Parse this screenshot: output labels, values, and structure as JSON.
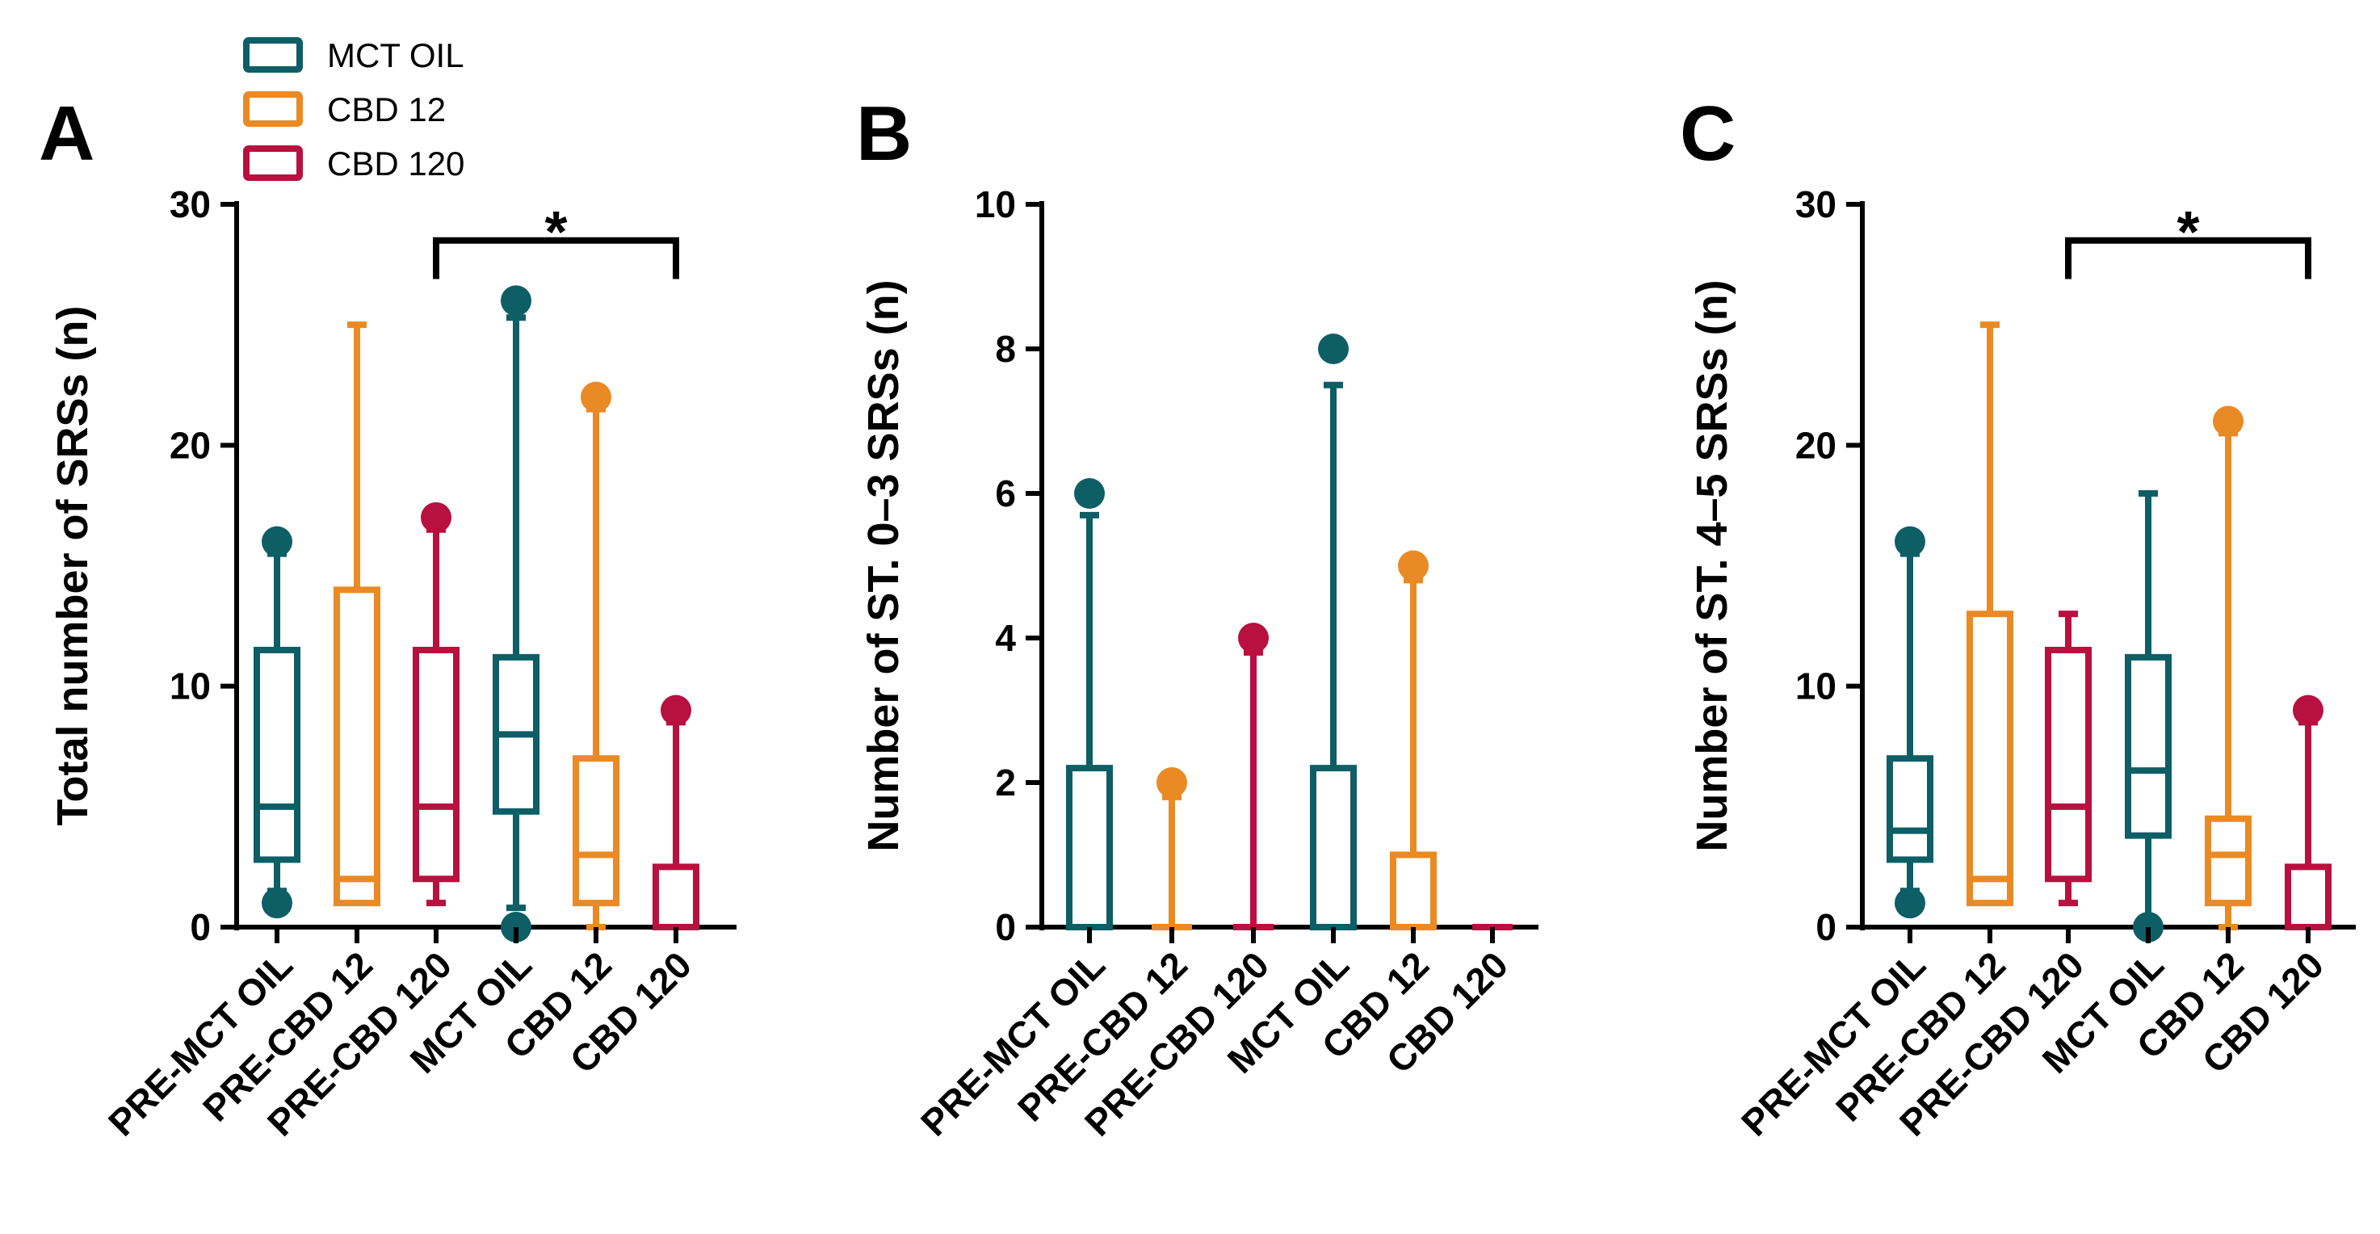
{
  "colors": {
    "MCT OIL": "#0e5e66",
    "CBD 12": "#ea8a24",
    "CBD 120": "#b8103f",
    "axis": "#000000"
  },
  "legend": [
    {
      "label": "MCT OIL",
      "group": "MCT OIL"
    },
    {
      "label": "CBD 12",
      "group": "CBD 12"
    },
    {
      "label": "CBD 120",
      "group": "CBD 120"
    }
  ],
  "chart_data": [
    {
      "type": "boxplot",
      "panel": "A",
      "ylabel": "Total number of SRSs (n)",
      "ylim": [
        0,
        30
      ],
      "yticks": [
        0,
        10,
        20,
        30
      ],
      "categories": [
        "PRE-MCT OIL",
        "PRE-CBD 12",
        "PRE-CBD 120",
        "MCT OIL",
        "CBD 12",
        "CBD 120"
      ],
      "groups": [
        "MCT OIL",
        "CBD 12",
        "CBD 120",
        "MCT OIL",
        "CBD 12",
        "CBD 120"
      ],
      "boxes": [
        {
          "q1": 2.8,
          "median": 5,
          "q3": 11.5,
          "whisker_low": 1.5,
          "whisker_high": 15.5,
          "outliers": [
            16,
            1
          ]
        },
        {
          "q1": 1,
          "median": 2,
          "q3": 14,
          "whisker_low": 1,
          "whisker_high": 25,
          "outliers": []
        },
        {
          "q1": 2,
          "median": 5,
          "q3": 11.5,
          "whisker_low": 1,
          "whisker_high": 16.5,
          "outliers": [
            17
          ]
        },
        {
          "q1": 4.8,
          "median": 8,
          "q3": 11.2,
          "whisker_low": 0.8,
          "whisker_high": 25.3,
          "outliers": [
            26,
            0
          ]
        },
        {
          "q1": 1,
          "median": 3,
          "q3": 7,
          "whisker_low": 0,
          "whisker_high": 21.5,
          "outliers": [
            22
          ]
        },
        {
          "q1": 0,
          "median": 0,
          "q3": 2.5,
          "whisker_low": 0,
          "whisker_high": 8.5,
          "outliers": [
            9
          ]
        }
      ],
      "significance": {
        "from": 2,
        "to": 5,
        "label": "*",
        "y": 28.5,
        "drop_to": 26.9
      }
    },
    {
      "type": "boxplot",
      "panel": "B",
      "ylabel": "Number of ST. 0–3 SRSs (n)",
      "ylim": [
        0,
        10
      ],
      "yticks": [
        0,
        2,
        4,
        6,
        8,
        10
      ],
      "categories": [
        "PRE-MCT OIL",
        "PRE-CBD 12",
        "PRE-CBD 120",
        "MCT OIL",
        "CBD 12",
        "CBD 120"
      ],
      "groups": [
        "MCT OIL",
        "CBD 12",
        "CBD 120",
        "MCT OIL",
        "CBD 12",
        "CBD 120"
      ],
      "boxes": [
        {
          "q1": 0,
          "median": 0,
          "q3": 2.2,
          "whisker_low": 0,
          "whisker_high": 5.7,
          "outliers": [
            6
          ]
        },
        {
          "q1": 0,
          "median": 0,
          "q3": 0,
          "whisker_low": 0,
          "whisker_high": 1.8,
          "outliers": [
            2
          ]
        },
        {
          "q1": 0,
          "median": 0,
          "q3": 0,
          "whisker_low": 0,
          "whisker_high": 3.8,
          "outliers": [
            4
          ]
        },
        {
          "q1": 0,
          "median": 0,
          "q3": 2.2,
          "whisker_low": 0,
          "whisker_high": 7.5,
          "outliers": [
            8
          ]
        },
        {
          "q1": 0,
          "median": 0,
          "q3": 1,
          "whisker_low": 0,
          "whisker_high": 4.8,
          "outliers": [
            5
          ]
        },
        {
          "q1": 0,
          "median": 0,
          "q3": 0,
          "whisker_low": 0,
          "whisker_high": 0,
          "outliers": []
        }
      ],
      "significance": null
    },
    {
      "type": "boxplot",
      "panel": "C",
      "ylabel": "Number of ST. 4–5 SRSs (n)",
      "ylim": [
        0,
        30
      ],
      "yticks": [
        0,
        10,
        20,
        30
      ],
      "categories": [
        "PRE-MCT OIL",
        "PRE-CBD 12",
        "PRE-CBD 120",
        "MCT OIL",
        "CBD 12",
        "CBD 120"
      ],
      "groups": [
        "MCT OIL",
        "CBD 12",
        "CBD 120",
        "MCT OIL",
        "CBD 12",
        "CBD 120"
      ],
      "boxes": [
        {
          "q1": 2.8,
          "median": 4,
          "q3": 7,
          "whisker_low": 1.5,
          "whisker_high": 15.5,
          "outliers": [
            16,
            1
          ]
        },
        {
          "q1": 1,
          "median": 2,
          "q3": 13,
          "whisker_low": 1,
          "whisker_high": 25,
          "outliers": []
        },
        {
          "q1": 2,
          "median": 5,
          "q3": 11.5,
          "whisker_low": 1,
          "whisker_high": 13,
          "outliers": []
        },
        {
          "q1": 3.8,
          "median": 6.5,
          "q3": 11.2,
          "whisker_low": 0.3,
          "whisker_high": 18,
          "outliers": [
            0
          ]
        },
        {
          "q1": 1,
          "median": 3,
          "q3": 4.5,
          "whisker_low": 0,
          "whisker_high": 20.5,
          "outliers": [
            21
          ]
        },
        {
          "q1": 0,
          "median": 0,
          "q3": 2.5,
          "whisker_low": 0,
          "whisker_high": 8.5,
          "outliers": [
            9
          ]
        }
      ],
      "significance": {
        "from": 2,
        "to": 5,
        "label": "*",
        "y": 28.5,
        "drop_to": 26.9
      }
    }
  ]
}
